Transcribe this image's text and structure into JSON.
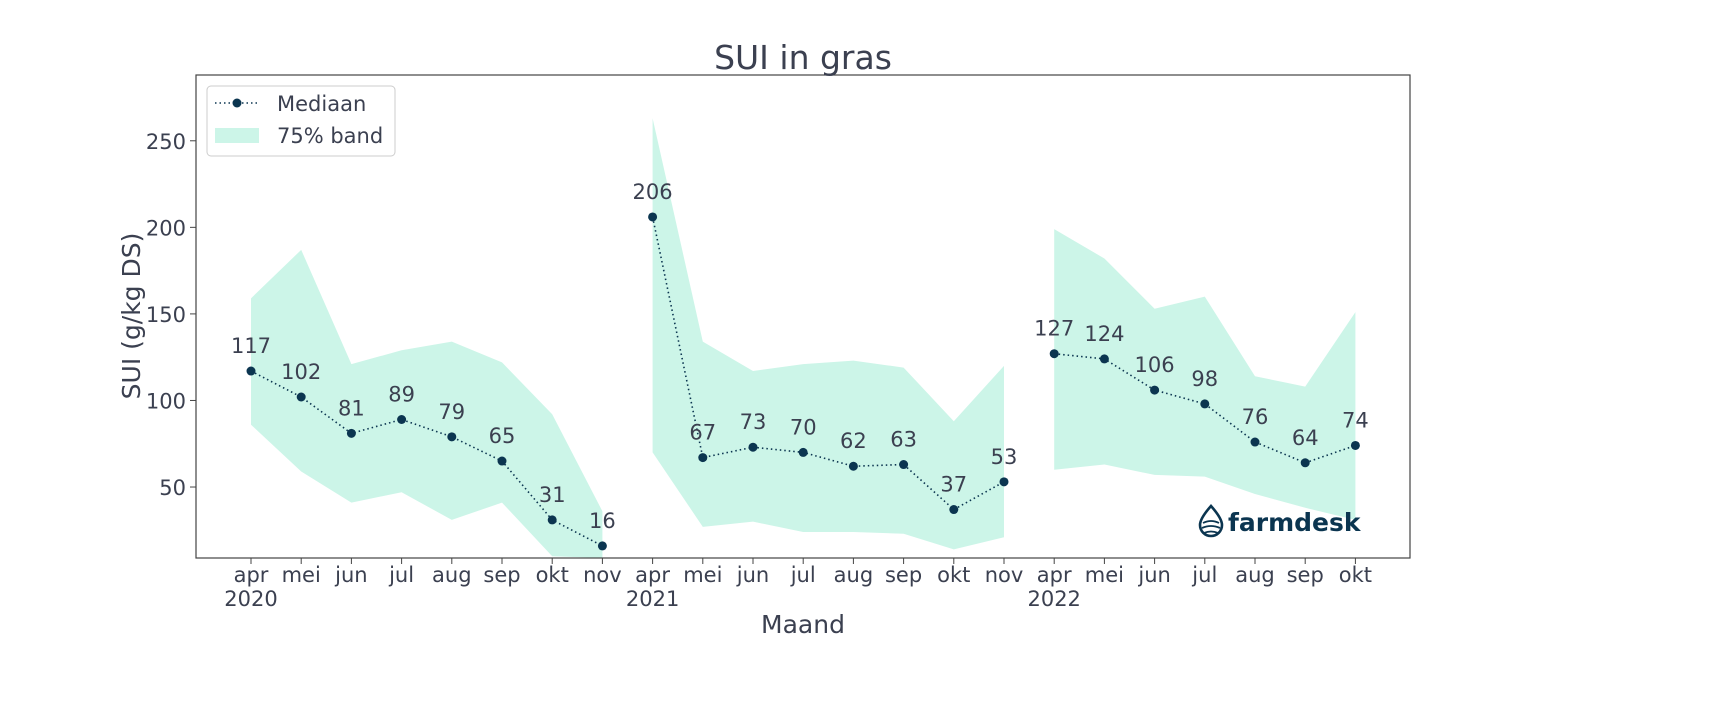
{
  "chart_data": {
    "type": "line",
    "title": "SUI in gras",
    "xlabel": "Maand",
    "ylabel": "SUI (g/kg DS)",
    "ylim": [
      9,
      288
    ],
    "yticks": [
      50,
      100,
      150,
      200,
      250
    ],
    "grid": false,
    "legend": {
      "placement": "top-left",
      "entries": [
        "Mediaan",
        "75% band"
      ]
    },
    "x_tick_labels": [
      "apr",
      "mei",
      "jun",
      "jul",
      "aug",
      "sep",
      "okt",
      "nov",
      "apr",
      "mei",
      "jun",
      "jul",
      "aug",
      "sep",
      "okt",
      "nov",
      "apr",
      "mei",
      "jun",
      "jul",
      "aug",
      "sep",
      "okt"
    ],
    "year_labels": [
      {
        "index": 0,
        "label": "2020"
      },
      {
        "index": 8,
        "label": "2021"
      },
      {
        "index": 16,
        "label": "2022"
      }
    ],
    "segments": [
      {
        "year": "2020",
        "start": 0,
        "median": [
          117,
          102,
          81,
          89,
          79,
          65,
          31,
          16
        ],
        "band_upper": [
          159,
          187,
          121,
          129,
          134,
          122,
          92,
          36
        ],
        "band_lower": [
          86,
          59,
          41,
          47,
          31,
          41,
          10,
          5
        ]
      },
      {
        "year": "2021",
        "start": 8,
        "median": [
          206,
          67,
          73,
          70,
          62,
          63,
          37,
          53
        ],
        "band_upper": [
          263,
          134,
          117,
          121,
          123,
          119,
          88,
          120
        ],
        "band_lower": [
          70,
          27,
          30,
          24,
          24,
          23,
          14,
          21
        ]
      },
      {
        "year": "2022",
        "start": 16,
        "median": [
          127,
          124,
          106,
          98,
          76,
          64,
          74
        ],
        "band_upper": [
          199,
          182,
          153,
          160,
          114,
          108,
          151
        ],
        "band_lower": [
          60,
          63,
          57,
          56,
          46,
          38,
          31
        ]
      }
    ],
    "colors": {
      "median": "#0b3550",
      "band": "#ccf5e8",
      "text": "#3b4050",
      "logo": "#0b3550"
    }
  },
  "logo": {
    "text": "farmdesk"
  }
}
